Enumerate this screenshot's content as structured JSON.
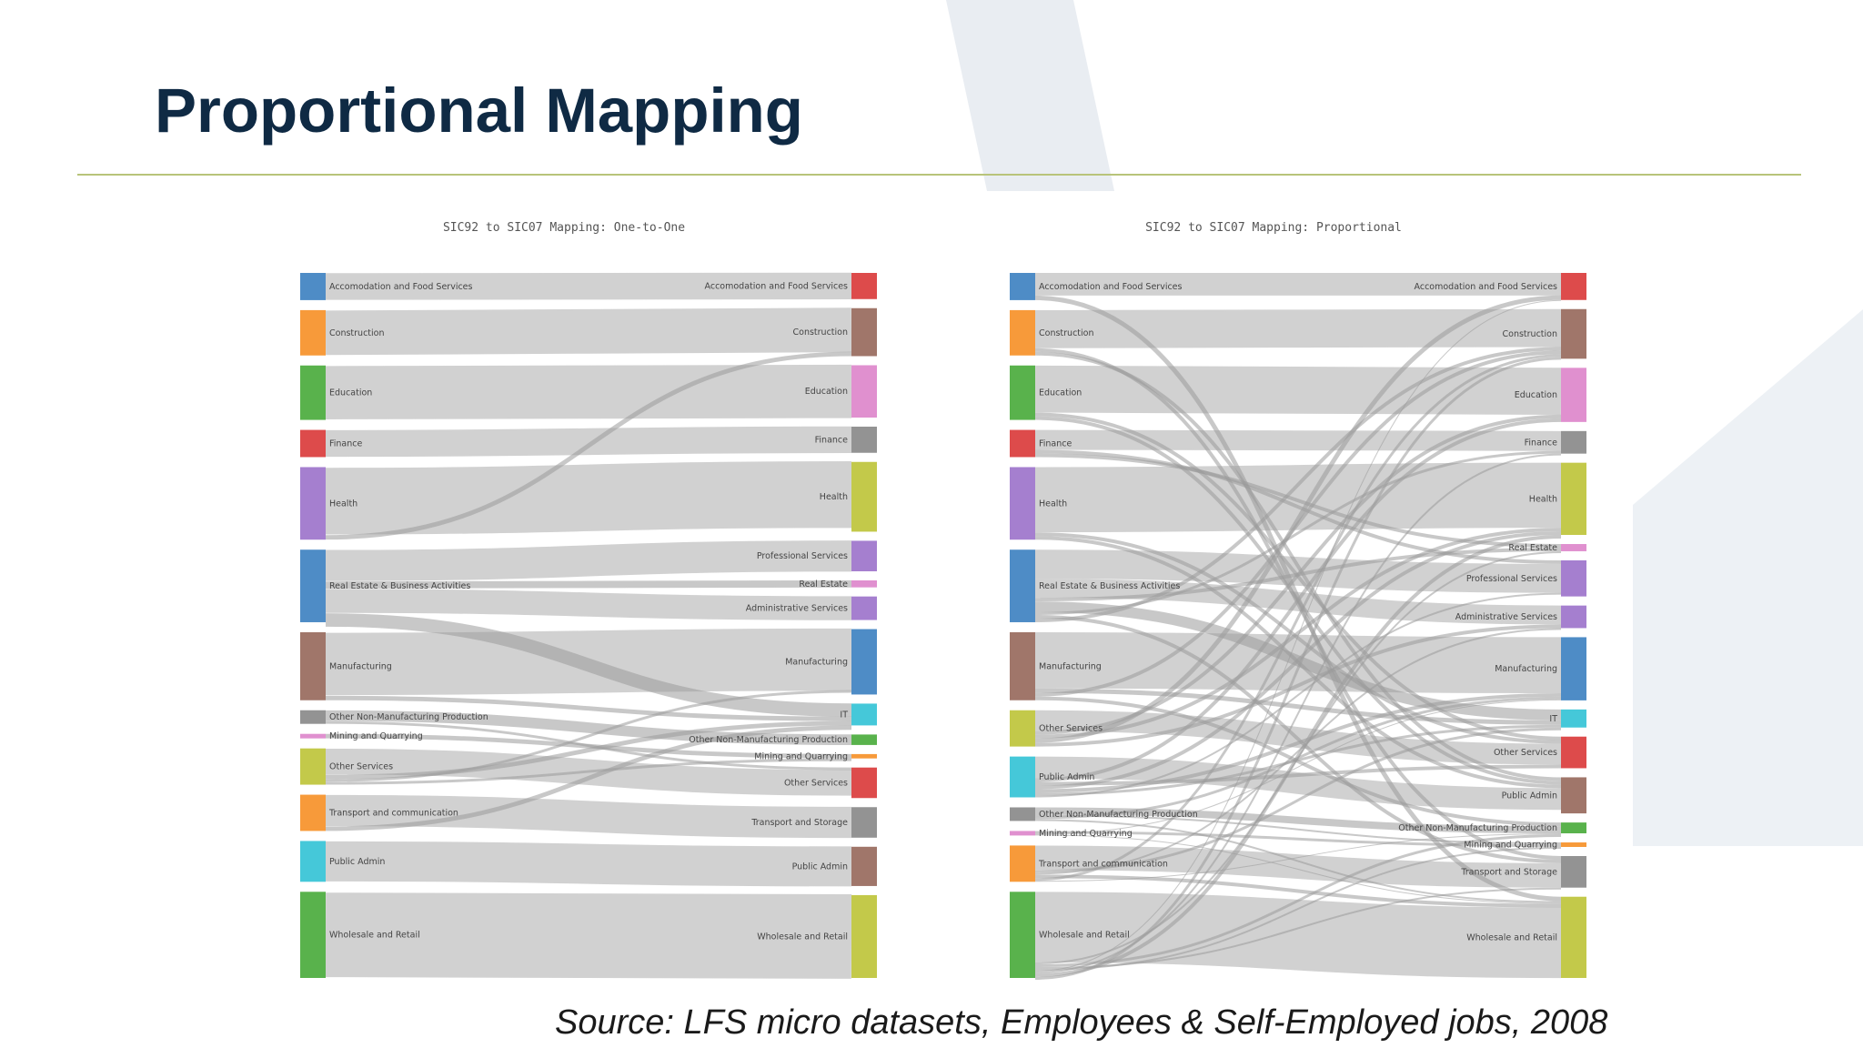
{
  "slide": {
    "title": "Proportional Mapping",
    "source": "Source: LFS micro datasets, Employees & Self-Employed jobs, 2008"
  },
  "chart_data": [
    {
      "type": "sankey",
      "mode": "one-to-one",
      "title": "SIC92 to SIC07 Mapping: One-to-One",
      "sources": [
        {
          "label": "Accomodation and Food Services",
          "color": "#4e8cc6",
          "value": 3
        },
        {
          "label": "Construction",
          "color": "#f79a3a",
          "value": 5
        },
        {
          "label": "Education",
          "color": "#59b24c",
          "value": 6
        },
        {
          "label": "Finance",
          "color": "#dd4b4b",
          "value": 3
        },
        {
          "label": "Health",
          "color": "#a57fcf",
          "value": 8
        },
        {
          "label": "Real Estate & Business Activities",
          "color": "#4e8cc6",
          "value": 8
        },
        {
          "label": "Manufacturing",
          "color": "#a0766a",
          "value": 7.5
        },
        {
          "label": "Other Non-Manufacturing Production",
          "color": "#939393",
          "value": 1.5
        },
        {
          "label": "Mining and Quarrying",
          "color": "#e090cf",
          "value": 0.5
        },
        {
          "label": "Other Services",
          "color": "#c3c94a",
          "value": 4
        },
        {
          "label": "Transport and communication",
          "color": "#f79a3a",
          "value": 4
        },
        {
          "label": "Public Admin",
          "color": "#45c8d9",
          "value": 4.5
        },
        {
          "label": "Wholesale and Retail",
          "color": "#59b24c",
          "value": 9.5
        }
      ],
      "targets": [
        {
          "label": "Accomodation and Food Services",
          "color": "#dd4b4b",
          "value": 3
        },
        {
          "label": "Construction",
          "color": "#a0766a",
          "value": 5.5
        },
        {
          "label": "Education",
          "color": "#e090cf",
          "value": 6
        },
        {
          "label": "Finance",
          "color": "#939393",
          "value": 3
        },
        {
          "label": "Health",
          "color": "#c3c94a",
          "value": 8
        },
        {
          "label": "Professional Services",
          "color": "#a57fcf",
          "value": 3.5
        },
        {
          "label": "Real Estate",
          "color": "#e090cf",
          "value": 0.8
        },
        {
          "label": "Administrative Services",
          "color": "#a57fcf",
          "value": 2.7
        },
        {
          "label": "Manufacturing",
          "color": "#4e8cc6",
          "value": 7.5
        },
        {
          "label": "IT",
          "color": "#45c8d9",
          "value": 2.5
        },
        {
          "label": "Other Non-Manufacturing Production",
          "color": "#59b24c",
          "value": 1.2
        },
        {
          "label": "Mining and Quarrying",
          "color": "#f79a3a",
          "value": 0.5
        },
        {
          "label": "Other Services",
          "color": "#dd4b4b",
          "value": 3.5
        },
        {
          "label": "Transport and Storage",
          "color": "#939393",
          "value": 3.5
        },
        {
          "label": "Public Admin",
          "color": "#a0766a",
          "value": 4.5
        },
        {
          "label": "Wholesale and Retail",
          "color": "#c3c94a",
          "value": 9.5
        }
      ],
      "links": [
        [
          0,
          0,
          3
        ],
        [
          1,
          1,
          5
        ],
        [
          2,
          2,
          6
        ],
        [
          3,
          3,
          3
        ],
        [
          4,
          4,
          7.5
        ],
        [
          4,
          1,
          0.5
        ],
        [
          5,
          5,
          3.5
        ],
        [
          5,
          6,
          0.8
        ],
        [
          5,
          7,
          2.7
        ],
        [
          5,
          9,
          1.5
        ],
        [
          6,
          8,
          7
        ],
        [
          6,
          9,
          0.5
        ],
        [
          7,
          10,
          1.2
        ],
        [
          7,
          12,
          0.3
        ],
        [
          8,
          11,
          0.5
        ],
        [
          9,
          12,
          2.9
        ],
        [
          9,
          9,
          0.5
        ],
        [
          9,
          8,
          0.3
        ],
        [
          9,
          11,
          0.3
        ],
        [
          10,
          13,
          3.5
        ],
        [
          10,
          9,
          0.5
        ],
        [
          11,
          14,
          4.5
        ],
        [
          12,
          15,
          9.5
        ]
      ]
    },
    {
      "type": "sankey",
      "mode": "proportional",
      "title": "SIC92 to SIC07 Mapping: Proportional",
      "sources": [
        {
          "label": "Accomodation and Food Services",
          "color": "#4e8cc6",
          "value": 3
        },
        {
          "label": "Construction",
          "color": "#f79a3a",
          "value": 5
        },
        {
          "label": "Education",
          "color": "#59b24c",
          "value": 6
        },
        {
          "label": "Finance",
          "color": "#dd4b4b",
          "value": 3
        },
        {
          "label": "Health",
          "color": "#a57fcf",
          "value": 8
        },
        {
          "label": "Real Estate & Business Activities",
          "color": "#4e8cc6",
          "value": 8
        },
        {
          "label": "Manufacturing",
          "color": "#a0766a",
          "value": 7.5
        },
        {
          "label": "Other Services",
          "color": "#c3c94a",
          "value": 4
        },
        {
          "label": "Public Admin",
          "color": "#45c8d9",
          "value": 4.5
        },
        {
          "label": "Other Non-Manufacturing Production",
          "color": "#939393",
          "value": 1.5
        },
        {
          "label": "Mining and Quarrying",
          "color": "#e090cf",
          "value": 0.5
        },
        {
          "label": "Transport and communication",
          "color": "#f79a3a",
          "value": 4
        },
        {
          "label": "Wholesale and Retail",
          "color": "#59b24c",
          "value": 9.5
        }
      ],
      "targets": [
        {
          "label": "Accomodation and Food Services",
          "color": "#dd4b4b",
          "value": 3
        },
        {
          "label": "Construction",
          "color": "#a0766a",
          "value": 5.5
        },
        {
          "label": "Education",
          "color": "#e090cf",
          "value": 6
        },
        {
          "label": "Finance",
          "color": "#939393",
          "value": 2.5
        },
        {
          "label": "Health",
          "color": "#c3c94a",
          "value": 8
        },
        {
          "label": "Real Estate",
          "color": "#e090cf",
          "value": 0.8
        },
        {
          "label": "Professional Services",
          "color": "#a57fcf",
          "value": 4
        },
        {
          "label": "Administrative Services",
          "color": "#a57fcf",
          "value": 2.5
        },
        {
          "label": "Manufacturing",
          "color": "#4e8cc6",
          "value": 7
        },
        {
          "label": "IT",
          "color": "#45c8d9",
          "value": 2
        },
        {
          "label": "Other Services",
          "color": "#dd4b4b",
          "value": 3.5
        },
        {
          "label": "Public Admin",
          "color": "#a0766a",
          "value": 4
        },
        {
          "label": "Other Non-Manufacturing Production",
          "color": "#59b24c",
          "value": 1.2
        },
        {
          "label": "Mining and Quarrying",
          "color": "#f79a3a",
          "value": 0.5
        },
        {
          "label": "Transport and Storage",
          "color": "#939393",
          "value": 3.5
        },
        {
          "label": "Wholesale and Retail",
          "color": "#c3c94a",
          "value": 9
        }
      ],
      "links": [
        [
          0,
          0,
          2.5
        ],
        [
          0,
          15,
          0.5
        ],
        [
          1,
          1,
          4.2
        ],
        [
          1,
          14,
          0.4
        ],
        [
          1,
          11,
          0.4
        ],
        [
          2,
          2,
          5.2
        ],
        [
          2,
          10,
          0.4
        ],
        [
          2,
          11,
          0.4
        ],
        [
          3,
          3,
          2.2
        ],
        [
          3,
          6,
          0.4
        ],
        [
          3,
          5,
          0.4
        ],
        [
          4,
          4,
          7.2
        ],
        [
          4,
          10,
          0.4
        ],
        [
          4,
          11,
          0.4
        ],
        [
          5,
          6,
          3.2
        ],
        [
          5,
          7,
          2.1
        ],
        [
          5,
          5,
          0.4
        ],
        [
          5,
          9,
          1.2
        ],
        [
          5,
          3,
          0.3
        ],
        [
          5,
          14,
          0.4
        ],
        [
          5,
          1,
          0.4
        ],
        [
          6,
          8,
          6.2
        ],
        [
          6,
          9,
          0.5
        ],
        [
          6,
          1,
          0.4
        ],
        [
          6,
          12,
          0.4
        ],
        [
          7,
          10,
          2.3
        ],
        [
          7,
          2,
          0.4
        ],
        [
          7,
          4,
          0.4
        ],
        [
          7,
          0,
          0.5
        ],
        [
          7,
          7,
          0.4
        ],
        [
          8,
          11,
          2.4
        ],
        [
          8,
          2,
          0.4
        ],
        [
          8,
          10,
          0.4
        ],
        [
          8,
          4,
          0.4
        ],
        [
          8,
          8,
          0.4
        ],
        [
          8,
          9,
          0.3
        ],
        [
          8,
          6,
          0.2
        ],
        [
          9,
          12,
          0.8
        ],
        [
          9,
          13,
          0.2
        ],
        [
          9,
          8,
          0.3
        ],
        [
          9,
          15,
          0.2
        ],
        [
          10,
          13,
          0.3
        ],
        [
          10,
          8,
          0.1
        ],
        [
          10,
          15,
          0.1
        ],
        [
          11,
          14,
          2.7
        ],
        [
          11,
          9,
          0.3
        ],
        [
          11,
          7,
          0.2
        ],
        [
          11,
          15,
          0.4
        ],
        [
          11,
          1,
          0.3
        ],
        [
          11,
          12,
          0.1
        ],
        [
          12,
          15,
          7.8
        ],
        [
          12,
          5,
          0.2
        ],
        [
          12,
          12,
          0.3
        ],
        [
          12,
          14,
          0.2
        ],
        [
          12,
          13,
          0.2
        ],
        [
          12,
          0,
          0.1
        ],
        [
          12,
          3,
          0.2
        ],
        [
          12,
          4,
          0.4
        ],
        [
          12,
          1,
          0.3
        ]
      ]
    }
  ]
}
